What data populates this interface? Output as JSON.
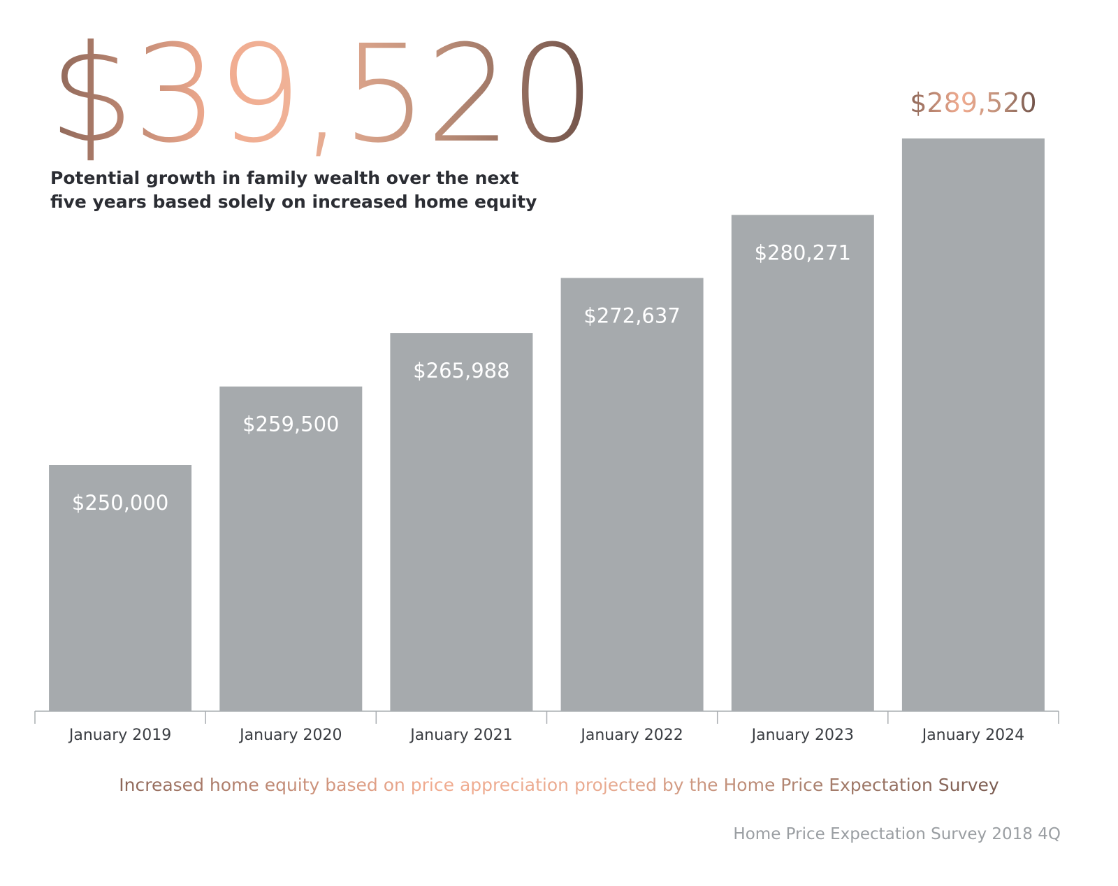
{
  "headline": {
    "value": "$39,520",
    "description": "Potential growth in family wealth over the next five years based solely on increased home equity"
  },
  "footnote": "Increased home equity based on price appreciation projected by the Home Price Expectation Survey",
  "source": "Home Price Expectation Survey 2018 4Q",
  "colors": {
    "bar": "#a6aaad",
    "bar_label": "#ffffff",
    "axis": "#a9adb1",
    "tick_label": "#3a3d42",
    "accent_gradient_start": "#8c6658",
    "accent_gradient_mid": "#f1ab8f",
    "accent_gradient_end": "#6f5148",
    "source_text": "#9a9ea2"
  },
  "chart_data": {
    "type": "bar",
    "categories": [
      "January 2019",
      "January 2020",
      "January 2021",
      "January 2022",
      "January 2023",
      "January 2024"
    ],
    "values": [
      250000,
      259500,
      265988,
      272637,
      280271,
      289520
    ],
    "data_labels": [
      "$250,000",
      "$259,500",
      "$265,988",
      "$272,637",
      "$280,271",
      "$289,520"
    ],
    "title": "",
    "xlabel": "",
    "ylabel": "",
    "grid": false,
    "legend": "none",
    "last_label_position": "above-bar"
  }
}
